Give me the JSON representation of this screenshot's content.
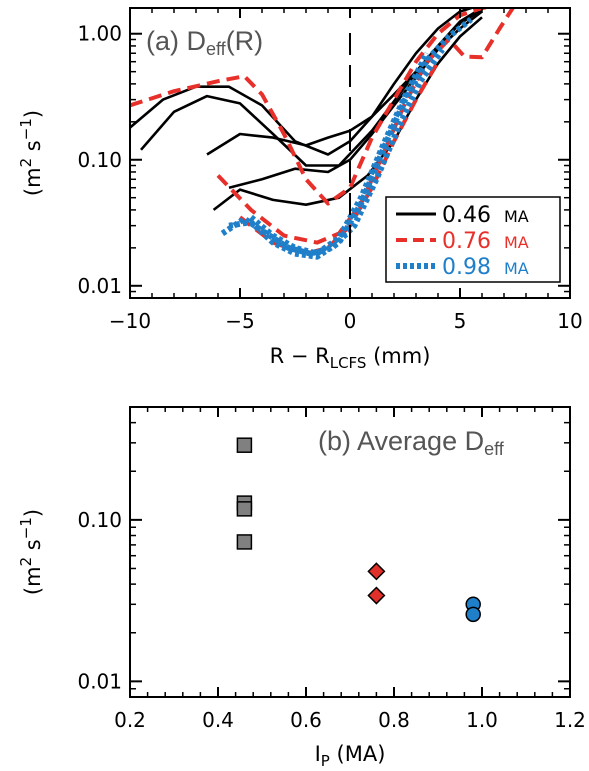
{
  "chart_data": [
    {
      "type": "line",
      "title": "(a) D",
      "title_sub": "eff",
      "title_suffix": "(R)",
      "xlabel": "R − R",
      "xlabel_sub": "LCFS",
      "xlabel_suffix": " (mm)",
      "ylabel": "(m",
      "ylabel_sup": "2",
      "ylabel_mid": " s",
      "ylabel_sup2": "−1",
      "ylabel_end": ")",
      "xlim": [
        -10,
        10
      ],
      "ylim": [
        0.008,
        1.6
      ],
      "yscale": "log",
      "xticks": [
        -10,
        -5,
        0,
        5,
        10
      ],
      "xtick_labels": [
        "−10",
        "−5",
        "0",
        "5",
        "10"
      ],
      "yticks": [
        0.01,
        0.1,
        1.0
      ],
      "ytick_labels": [
        "0.01",
        "0.10",
        "1.00"
      ],
      "vline_x": 0,
      "legend_position": "bottom-right",
      "legend": [
        {
          "value": "0.46",
          "unit": "MA",
          "color": "#000000",
          "style": "solid"
        },
        {
          "value": "0.76",
          "unit": "MA",
          "color": "#e8302a",
          "style": "dashed"
        },
        {
          "value": "0.98",
          "unit": "MA",
          "color": "#1f7fc9",
          "style": "dotted"
        }
      ],
      "series": [
        {
          "group": 0,
          "color": "#000000",
          "style": "solid",
          "x": [
            -10,
            -8.5,
            -7,
            -5.5,
            -4,
            -2.5,
            -1,
            0,
            1,
            2,
            3,
            4,
            5,
            6
          ],
          "y": [
            0.18,
            0.3,
            0.38,
            0.38,
            0.27,
            0.14,
            0.11,
            0.14,
            0.22,
            0.4,
            0.7,
            1.1,
            1.5,
            1.7
          ]
        },
        {
          "group": 0,
          "color": "#000000",
          "style": "solid",
          "x": [
            -9.5,
            -8,
            -6.5,
            -5,
            -3.5,
            -2,
            -0.5,
            1,
            2.5,
            4,
            5,
            6
          ],
          "y": [
            0.12,
            0.24,
            0.32,
            0.28,
            0.16,
            0.09,
            0.09,
            0.17,
            0.38,
            0.8,
            1.25,
            1.6
          ]
        },
        {
          "group": 0,
          "color": "#000000",
          "style": "solid",
          "x": [
            -6.5,
            -5,
            -3.5,
            -2,
            -1,
            0,
            1,
            2,
            3,
            4,
            5,
            6
          ],
          "y": [
            0.11,
            0.16,
            0.15,
            0.13,
            0.15,
            0.17,
            0.22,
            0.33,
            0.5,
            0.8,
            1.2,
            1.55
          ]
        },
        {
          "group": 0,
          "color": "#000000",
          "style": "solid",
          "x": [
            -5.5,
            -4,
            -2.5,
            -1,
            0,
            1,
            2,
            3,
            4,
            5,
            6
          ],
          "y": [
            0.06,
            0.07,
            0.085,
            0.08,
            0.1,
            0.16,
            0.27,
            0.45,
            0.75,
            1.1,
            1.5
          ]
        },
        {
          "group": 0,
          "color": "#000000",
          "style": "solid",
          "x": [
            -6.2,
            -5,
            -3.5,
            -2,
            -0.5,
            0.8,
            2,
            3,
            4,
            5,
            6
          ],
          "y": [
            0.04,
            0.058,
            0.048,
            0.044,
            0.05,
            0.075,
            0.14,
            0.3,
            0.58,
            0.95,
            1.35
          ]
        },
        {
          "group": 1,
          "color": "#e8302a",
          "style": "dashed",
          "x": [
            -10,
            -8,
            -6,
            -4.8,
            -4,
            -3,
            -2,
            -1,
            0,
            1,
            2,
            3,
            4,
            5,
            6,
            7
          ],
          "y": [
            0.27,
            0.35,
            0.42,
            0.46,
            0.33,
            0.16,
            0.07,
            0.045,
            0.06,
            0.15,
            0.3,
            0.6,
            1.0,
            1.4,
            1.6,
            1.7
          ]
        },
        {
          "group": 1,
          "color": "#e8302a",
          "style": "dashed",
          "x": [
            -6,
            -4.5,
            -3,
            -1.5,
            -0.5,
            0.5,
            1.5,
            2.5,
            3.5,
            4.5,
            5.2,
            6,
            6.8,
            7.4
          ],
          "y": [
            0.075,
            0.04,
            0.025,
            0.022,
            0.026,
            0.045,
            0.11,
            0.28,
            0.6,
            0.9,
            0.66,
            0.65,
            1.1,
            1.6
          ]
        },
        {
          "group": 1,
          "color": "#e8302a",
          "style": "dashed",
          "x": [
            -5,
            -3.5,
            -2,
            -1,
            0,
            1,
            2,
            3,
            4
          ],
          "y": [
            0.035,
            0.022,
            0.018,
            0.02,
            0.03,
            0.06,
            0.14,
            0.3,
            0.6
          ]
        },
        {
          "group": 2,
          "color": "#1f7fc9",
          "style": "dotted",
          "x": [
            -5.5,
            -4.5,
            -3.5,
            -2.5,
            -1.5,
            -0.5,
            0.5,
            1.5,
            2.5,
            3.5,
            4.5,
            5.5
          ],
          "y": [
            0.03,
            0.032,
            0.022,
            0.018,
            0.017,
            0.022,
            0.045,
            0.12,
            0.3,
            0.62,
            0.95,
            1.3
          ]
        },
        {
          "group": 2,
          "color": "#1f7fc9",
          "style": "dotted",
          "x": [
            -5.8,
            -4.8,
            -3.8,
            -2.8,
            -1.8,
            -0.8,
            0.2,
            1.2,
            2.2,
            3.2,
            4.2
          ],
          "y": [
            0.026,
            0.034,
            0.026,
            0.02,
            0.018,
            0.02,
            0.03,
            0.07,
            0.18,
            0.42,
            0.75
          ]
        },
        {
          "group": 2,
          "color": "#1f7fc9",
          "style": "dotted",
          "x": [
            -4.5,
            -3.5,
            -2.5,
            -1.5,
            -0.5,
            0.5,
            1.5,
            2.5,
            3.5
          ],
          "y": [
            0.035,
            0.025,
            0.02,
            0.018,
            0.024,
            0.05,
            0.13,
            0.32,
            0.7
          ]
        }
      ]
    },
    {
      "type": "scatter",
      "title": "(b) Average D",
      "title_sub": "eff",
      "xlabel": "I",
      "xlabel_sub": "P",
      "xlabel_suffix": " (MA)",
      "ylabel": "(m",
      "ylabel_sup": "2",
      "ylabel_mid": " s",
      "ylabel_sup2": "−1",
      "ylabel_end": ")",
      "xlim": [
        0.2,
        1.2
      ],
      "ylim": [
        0.008,
        0.5
      ],
      "yscale": "log",
      "xticks": [
        0.2,
        0.4,
        0.6,
        0.8,
        1.0,
        1.2
      ],
      "xtick_labels": [
        "0.2",
        "0.4",
        "0.6",
        "0.8",
        "1.0",
        "1.2"
      ],
      "yticks": [
        0.01,
        0.1
      ],
      "ytick_labels": [
        "0.01",
        "0.10"
      ],
      "series": [
        {
          "marker": "square",
          "color": "#808080",
          "x": [
            0.46,
            0.46,
            0.46,
            0.46
          ],
          "y": [
            0.29,
            0.127,
            0.117,
            0.073
          ]
        },
        {
          "marker": "diamond",
          "color": "#e0302a",
          "x": [
            0.76,
            0.76
          ],
          "y": [
            0.048,
            0.034
          ]
        },
        {
          "marker": "circle",
          "color": "#1f7fc9",
          "x": [
            0.98,
            0.98
          ],
          "y": [
            0.03,
            0.026
          ]
        }
      ]
    }
  ]
}
